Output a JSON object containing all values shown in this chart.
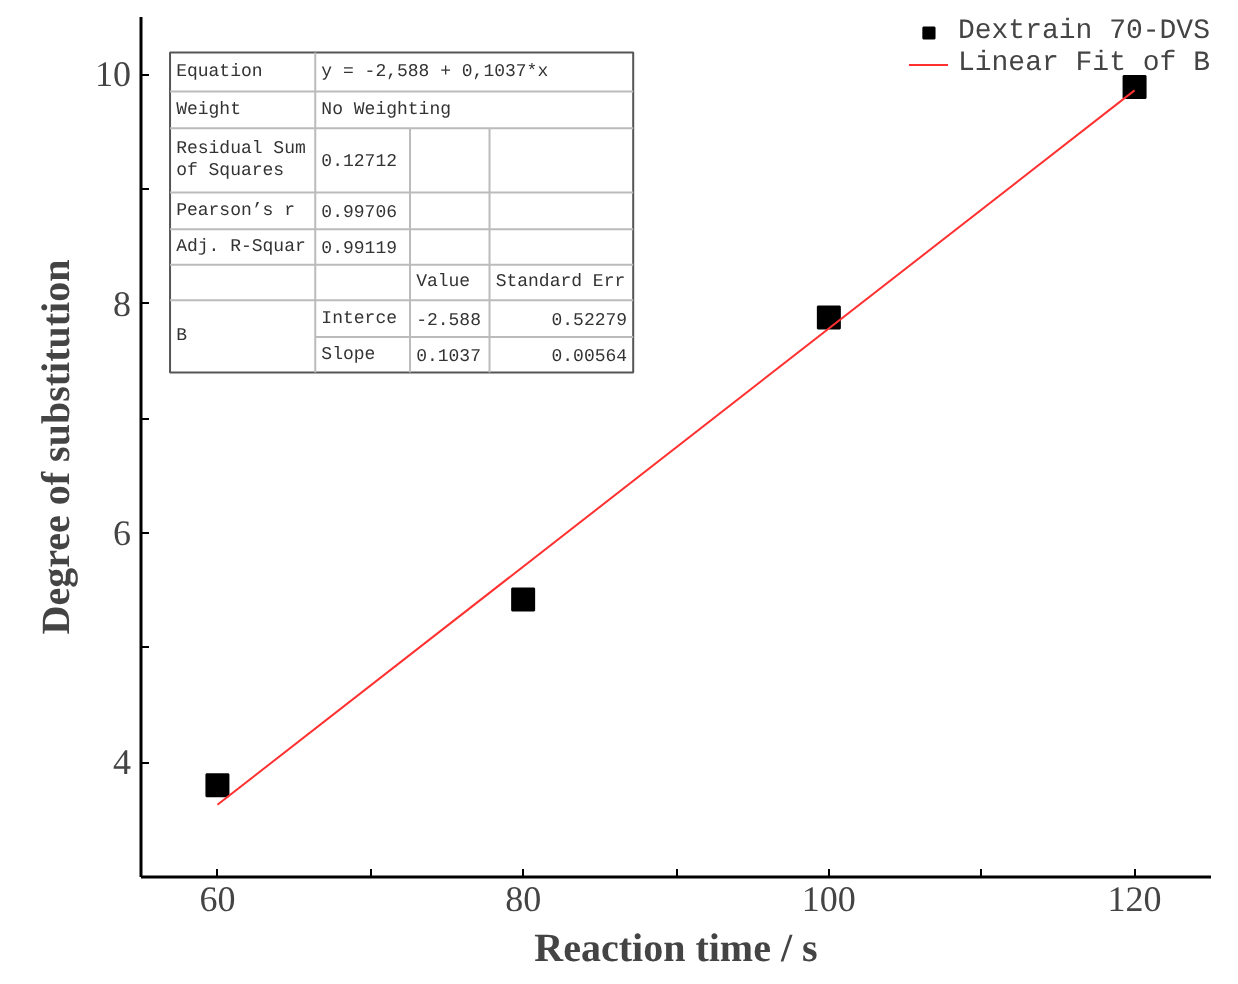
{
  "chart_data": {
    "type": "scatter",
    "xlabel": "Reaction time / s",
    "ylabel": "Degree of substitution",
    "xlim": [
      55,
      125
    ],
    "ylim": [
      3,
      10.5
    ],
    "xticks": [
      60,
      {
        "value": 70,
        "label": null
      },
      80,
      {
        "value": 90,
        "label": null
      },
      100,
      {
        "value": 110,
        "label": null
      },
      120
    ],
    "yticks": [
      4,
      {
        "value": 5,
        "label": null
      },
      6,
      {
        "value": 7,
        "label": null
      },
      8,
      {
        "value": 9,
        "label": null
      },
      10
    ],
    "grid": false,
    "legend": "top right",
    "marker": "square",
    "x": [
      60,
      80,
      100,
      120
    ],
    "series": [
      {
        "name": "Dextrain 70-DVS",
        "color": "#000000",
        "values": [
          3.8,
          5.42,
          7.88,
          9.89
        ]
      },
      {
        "name": "Linear Fit of B",
        "type": "line",
        "color": "#ff3030",
        "line_style": "solid",
        "marker": "none",
        "x": [
          60,
          120
        ],
        "values": [
          3.63,
          9.86
        ]
      }
    ],
    "annotations": [
      "Equation",
      "y = -2,588 + 0,1037*x",
      "Weight",
      "No Weighting",
      "Residual Sum\nof Squares",
      "0.12712",
      "Pearson’s r",
      "0.99706",
      "Adj. R-Squar",
      "0.99119",
      "Value",
      "Standard Err",
      "B",
      "Interce",
      "-2.588",
      "0.52279",
      "Slope",
      "0.1037",
      "0.00564"
    ]
  }
}
